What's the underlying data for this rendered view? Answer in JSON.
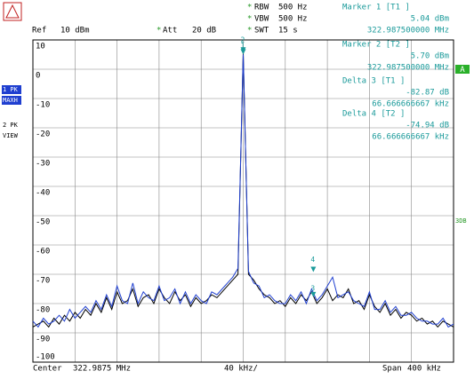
{
  "chart_data": {
    "type": "line",
    "header": {
      "ref": "Ref",
      "ref_level": "10 dBm",
      "att": "Att",
      "att_value": "20 dB",
      "rbw": "RBW",
      "rbw_value": "500 Hz",
      "vbw": "VBW",
      "vbw_value": "500 Hz",
      "swt": "SWT",
      "swt_value": "15 s"
    },
    "marker_info": [
      {
        "title": "Marker 1 [T1 ]",
        "level": "5.04 dBm",
        "freq": "322.987500000 MHz"
      },
      {
        "title": "Marker 2 [T2 ]",
        "level": "5.70 dBm",
        "freq": "322.987500000 MHz"
      },
      {
        "title": "Delta 3 [T1 ]",
        "level": "-82.87 dB",
        "freq": "66.666666667 kHz"
      },
      {
        "title": "Delta 4 [T2 ]",
        "level": "-74.94 dB",
        "freq": "66.666666667 kHz"
      }
    ],
    "side_labels": {
      "a": "A",
      "db3": "3DB"
    },
    "footer": {
      "center": "Center",
      "center_freq": "322.9875 MHz",
      "div": "40 kHz/",
      "span": "Span",
      "span_value": "400 kHz"
    },
    "xlim": [
      -200,
      200
    ],
    "xticks": [
      -200,
      -160,
      -120,
      -80,
      -40,
      0,
      40,
      80,
      120,
      160,
      200
    ],
    "ylim": [
      -100,
      10
    ],
    "yticks": [
      10,
      0,
      -10,
      -20,
      -30,
      -40,
      -50,
      -60,
      -70,
      -80,
      -90,
      -100
    ],
    "grid": true,
    "x": [
      -200,
      -195,
      -190,
      -185,
      -180,
      -175,
      -170,
      -165,
      -160,
      -155,
      -150,
      -145,
      -140,
      -135,
      -130,
      -125,
      -120,
      -115,
      -110,
      -105,
      -100,
      -95,
      -90,
      -85,
      -80,
      -75,
      -70,
      -65,
      -60,
      -55,
      -50,
      -45,
      -40,
      -35,
      -30,
      -25,
      -20,
      -15,
      -10,
      -5,
      0,
      5,
      10,
      15,
      20,
      25,
      30,
      35,
      40,
      45,
      50,
      55,
      60,
      65,
      70,
      75,
      80,
      85,
      90,
      95,
      100,
      105,
      110,
      115,
      120,
      125,
      130,
      135,
      140,
      145,
      150,
      155,
      160,
      165,
      170,
      175,
      180,
      185,
      190,
      195,
      200
    ],
    "series": [
      {
        "name": "2 PK",
        "mode": "VIEW",
        "color": "#000000",
        "values": [
          -88,
          -87,
          -86,
          -88,
          -85,
          -87,
          -84,
          -86,
          -83,
          -85,
          -82,
          -84,
          -80,
          -83,
          -78,
          -82,
          -76,
          -80,
          -79,
          -75,
          -81,
          -78,
          -77,
          -80,
          -75,
          -78,
          -80,
          -76,
          -79,
          -77,
          -81,
          -78,
          -80,
          -79,
          -77,
          -78,
          -76,
          -74,
          -72,
          -70,
          5.7,
          -70,
          -72,
          -75,
          -77,
          -78,
          -80,
          -79,
          -81,
          -78,
          -80,
          -77,
          -79,
          -76,
          -80,
          -78,
          -75,
          -79,
          -77,
          -78,
          -75,
          -80,
          -79,
          -82,
          -77,
          -81,
          -83,
          -80,
          -84,
          -82,
          -85,
          -83,
          -84,
          -86,
          -85,
          -87,
          -86,
          -88,
          -86,
          -87,
          -88
        ]
      },
      {
        "name": "1 PK",
        "mode": "MAXH",
        "color": "#1f3fd0",
        "values": [
          -86,
          -88,
          -85,
          -87,
          -86,
          -84,
          -86,
          -82,
          -85,
          -83,
          -81,
          -83,
          -79,
          -82,
          -77,
          -81,
          -74,
          -79,
          -80,
          -73,
          -80,
          -76,
          -78,
          -79,
          -74,
          -79,
          -78,
          -75,
          -80,
          -76,
          -80,
          -77,
          -79,
          -80,
          -76,
          -77,
          -75,
          -73,
          -71,
          -68,
          5.04,
          -69,
          -73,
          -74,
          -78,
          -77,
          -79,
          -80,
          -80,
          -77,
          -79,
          -76,
          -80,
          -75,
          -79,
          -77,
          -74,
          -71,
          -78,
          -77,
          -76,
          -79,
          -80,
          -81,
          -76,
          -82,
          -82,
          -79,
          -83,
          -81,
          -84,
          -84,
          -83,
          -85,
          -86,
          -86,
          -87,
          -87,
          -85,
          -88,
          -87
        ]
      }
    ],
    "markers": [
      {
        "label": "1",
        "x": 0,
        "y": 5.04
      },
      {
        "label": "2",
        "x": 0,
        "y": 5.7
      },
      {
        "label": "3",
        "x": 66.666666667,
        "y": -77.83
      },
      {
        "label": "4",
        "x": 66.666666667,
        "y": -69.24
      }
    ]
  }
}
